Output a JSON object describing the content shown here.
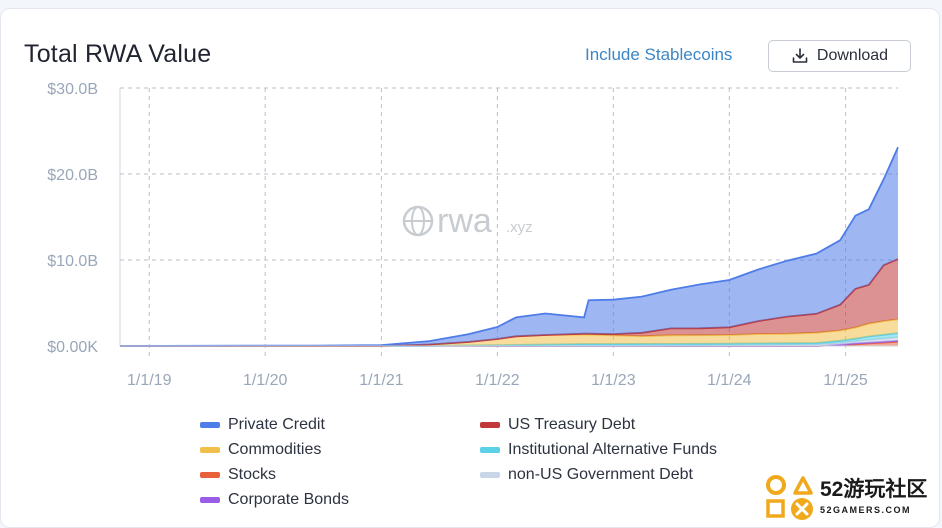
{
  "header": {
    "title": "Total RWA Value",
    "toggle_label": "Include Stablecoins",
    "download_label": "Download"
  },
  "watermark": {
    "brand": "rwa",
    "suffix": ".xyz"
  },
  "branding": {
    "main": "52游玩社区",
    "sub": "52GAMERS.COM"
  },
  "chart_data": {
    "type": "area",
    "title": "Total RWA Value",
    "stacked": true,
    "x_axis": {
      "type": "date",
      "range": [
        "2018-10-01",
        "2025-06-15"
      ],
      "ticks": [
        "2019-01-01",
        "2020-01-01",
        "2021-01-01",
        "2022-01-01",
        "2023-01-01",
        "2024-01-01",
        "2025-01-01"
      ],
      "tick_labels": [
        "1/1/19",
        "1/1/20",
        "1/1/21",
        "1/1/22",
        "1/1/23",
        "1/1/24",
        "1/1/25"
      ]
    },
    "y_axis": {
      "unit": "USD billions",
      "range": [
        0,
        30
      ],
      "ticks": [
        0,
        10,
        20,
        30
      ],
      "tick_labels": [
        "$0.00K",
        "$10.0B",
        "$20.0B",
        "$30.0B"
      ]
    },
    "grid": true,
    "legend_position": "bottom",
    "x": [
      "2018-10-01",
      "2019-06-01",
      "2020-06-01",
      "2021-01-01",
      "2021-06-01",
      "2021-10-01",
      "2022-01-01",
      "2022-03-01",
      "2022-06-01",
      "2022-10-01",
      "2022-10-15",
      "2023-01-01",
      "2023-04-01",
      "2023-07-01",
      "2023-10-01",
      "2024-01-01",
      "2024-04-01",
      "2024-07-01",
      "2024-10-01",
      "2024-12-15",
      "2025-02-01",
      "2025-03-15",
      "2025-05-01",
      "2025-06-15"
    ],
    "series": [
      {
        "name": "Stocks",
        "color": "#e8613a",
        "values": [
          0,
          0,
          0,
          0,
          0,
          0,
          0,
          0,
          0,
          0,
          0,
          0,
          0,
          0,
          0,
          0,
          0,
          0,
          0,
          0.1,
          0.2,
          0.3,
          0.4,
          0.5
        ]
      },
      {
        "name": "Corporate Bonds",
        "color": "#9b5de5",
        "values": [
          0,
          0,
          0,
          0,
          0,
          0,
          0,
          0,
          0,
          0,
          0,
          0,
          0,
          0,
          0,
          0,
          0,
          0,
          0,
          0.05,
          0.1,
          0.1,
          0.1,
          0.1
        ]
      },
      {
        "name": "non-US Government Debt",
        "color": "#c9d6e8",
        "values": [
          0,
          0,
          0,
          0,
          0,
          0.02,
          0.03,
          0.03,
          0.03,
          0.03,
          0.03,
          0.03,
          0.04,
          0.05,
          0.06,
          0.08,
          0.1,
          0.12,
          0.15,
          0.2,
          0.25,
          0.3,
          0.35,
          0.4
        ]
      },
      {
        "name": "Institutional Alternative Funds",
        "color": "#5ad1e6",
        "values": [
          0,
          0,
          0,
          0,
          0.02,
          0.05,
          0.08,
          0.1,
          0.15,
          0.2,
          0.2,
          0.2,
          0.2,
          0.2,
          0.2,
          0.2,
          0.2,
          0.2,
          0.2,
          0.25,
          0.3,
          0.4,
          0.45,
          0.5
        ]
      },
      {
        "name": "Commodities",
        "color": "#f0c04a",
        "values": [
          0,
          0,
          0,
          0,
          0.15,
          0.4,
          0.7,
          1.0,
          1.1,
          1.1,
          1.1,
          1.0,
          0.9,
          1.0,
          1.0,
          1.0,
          1.1,
          1.1,
          1.2,
          1.2,
          1.3,
          1.5,
          1.6,
          1.6
        ]
      },
      {
        "name": "US Treasury Debt",
        "color": "#c0393b",
        "values": [
          0,
          0,
          0,
          0,
          0,
          0,
          0,
          0,
          0,
          0.1,
          0.1,
          0.15,
          0.4,
          0.8,
          0.8,
          0.9,
          1.5,
          2.0,
          2.2,
          3.0,
          4.5,
          4.5,
          6.5,
          7.0
        ]
      },
      {
        "name": "Private Credit",
        "color": "#4e7ce8",
        "values": [
          0,
          0.02,
          0.05,
          0.1,
          0.4,
          0.9,
          1.4,
          2.2,
          2.5,
          1.9,
          3.9,
          4.0,
          4.2,
          4.5,
          5.1,
          5.5,
          6.0,
          6.5,
          7.0,
          7.5,
          8.5,
          8.8,
          10.0,
          13.0
        ]
      }
    ]
  },
  "legend_order": [
    "Private Credit",
    "US Treasury Debt",
    "Commodities",
    "Institutional Alternative Funds",
    "Stocks",
    "non-US Government Debt",
    "Corporate Bonds"
  ]
}
